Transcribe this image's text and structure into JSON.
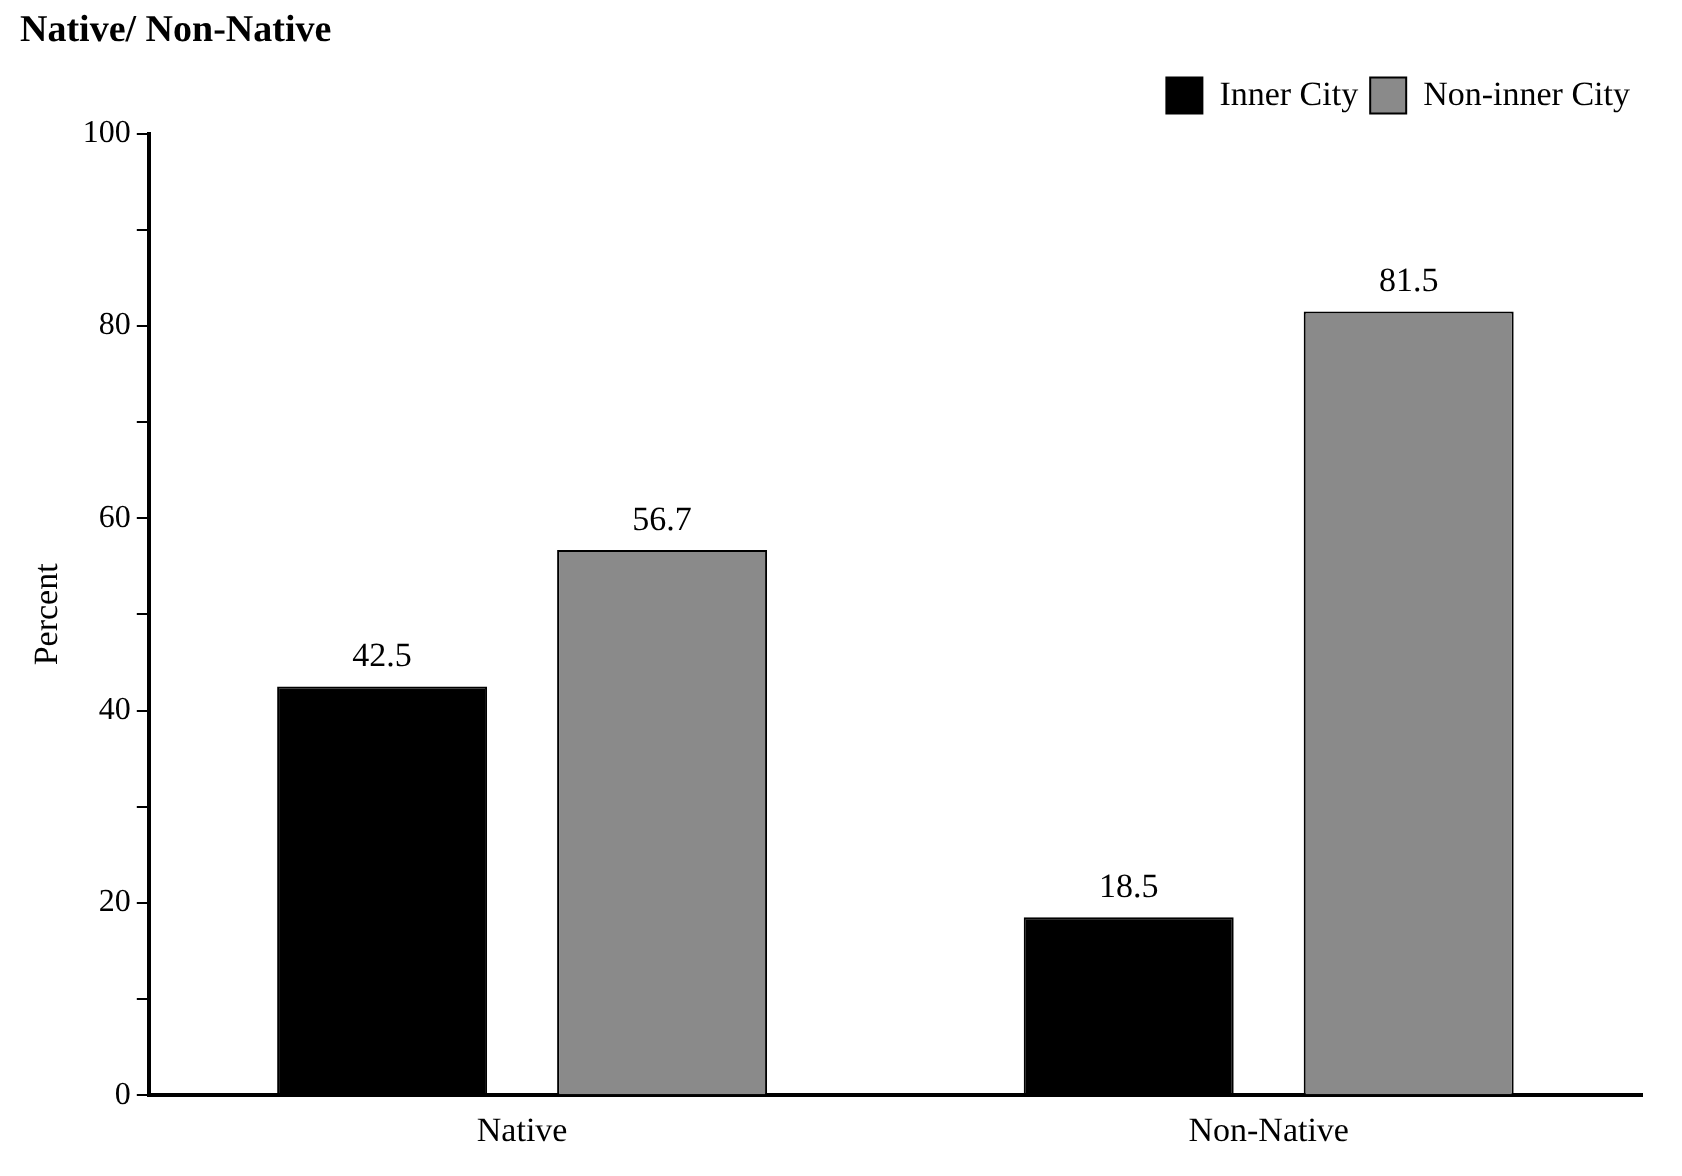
{
  "chart_data": {
    "type": "bar",
    "title": "Native/ Non-Native",
    "ylabel": "Percent",
    "categories": [
      "Native",
      "Non-Native"
    ],
    "series": [
      {
        "name": "Inner City",
        "color": "#000000",
        "values": [
          42.5,
          18.5
        ]
      },
      {
        "name": "Non-inner City",
        "color": "#8a8a8a",
        "values": [
          56.7,
          81.5
        ]
      }
    ],
    "ylim": [
      0,
      100
    ],
    "yticks": [
      0,
      {
        "value": 10,
        "label": null
      },
      20,
      {
        "value": 30,
        "label": null
      },
      40,
      {
        "value": 50,
        "label": null
      },
      60,
      {
        "value": 70,
        "label": null
      },
      80,
      {
        "value": 90,
        "label": null
      },
      100
    ],
    "grid": false,
    "legend": "top right",
    "data_labels": true
  }
}
